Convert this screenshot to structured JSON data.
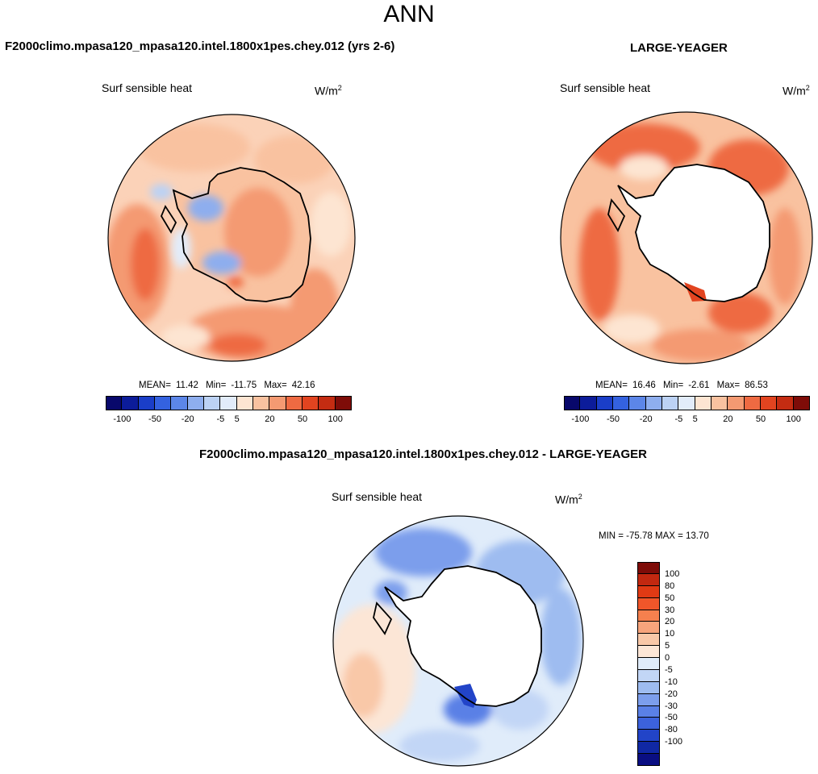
{
  "figure": {
    "season": "ANN",
    "variable": "Surf sensible heat",
    "units_base": "W/m",
    "units_exp": "2"
  },
  "panels": {
    "test": {
      "title": "F2000climo.mpasa120_mpasa120.intel.1800x1pes.chey.012 (yrs 2-6)",
      "mean_label": "MEAN=",
      "mean": "11.42",
      "min_label": "Min=",
      "min": "-11.75",
      "max_label": "Max=",
      "max": "42.16"
    },
    "ref": {
      "title": "LARGE-YEAGER",
      "mean_label": "MEAN=",
      "mean": "16.46",
      "min_label": "Min=",
      "min": "-2.61",
      "max_label": "Max=",
      "max": "86.53"
    },
    "diff": {
      "title": "F2000climo.mpasa120_mpasa120.intel.1800x1pes.chey.012 - LARGE-YEAGER",
      "minmax": "MIN = -75.78 MAX = 13.70"
    }
  },
  "colorbar_main": {
    "colors": [
      "#08086b",
      "#0c1c9a",
      "#1a3ec8",
      "#3462e0",
      "#5c86e8",
      "#8eaeee",
      "#bcd2f4",
      "#e2ecfa",
      "#fde5d2",
      "#f9c2a0",
      "#f49a72",
      "#ee6a42",
      "#e24420",
      "#c42c12",
      "#7e0c08"
    ],
    "tick_labels": [
      "-100",
      "-50",
      "-20",
      "-5",
      "5",
      "20",
      "50",
      "100"
    ],
    "tick_boundary_index": [
      1,
      3,
      5,
      7,
      8,
      10,
      12,
      14
    ]
  },
  "colorbar_diff": {
    "colors": [
      "#7e0c08",
      "#c22810",
      "#e03a14",
      "#f0562a",
      "#f5804e",
      "#f7a47c",
      "#f9c8a8",
      "#fce6d6",
      "#e0ecfa",
      "#c2d6f6",
      "#9ebcf0",
      "#7c9eec",
      "#5a80e6",
      "#3c62dc",
      "#2244c8",
      "#1028a4",
      "#0a0e82"
    ],
    "tick_labels": [
      "100",
      "80",
      "50",
      "30",
      "20",
      "10",
      "5",
      "0",
      "-5",
      "-10",
      "-20",
      "-30",
      "-50",
      "-80",
      "-100"
    ]
  },
  "colors": {
    "coast": "#000000",
    "land_blank": "#ffffff"
  }
}
